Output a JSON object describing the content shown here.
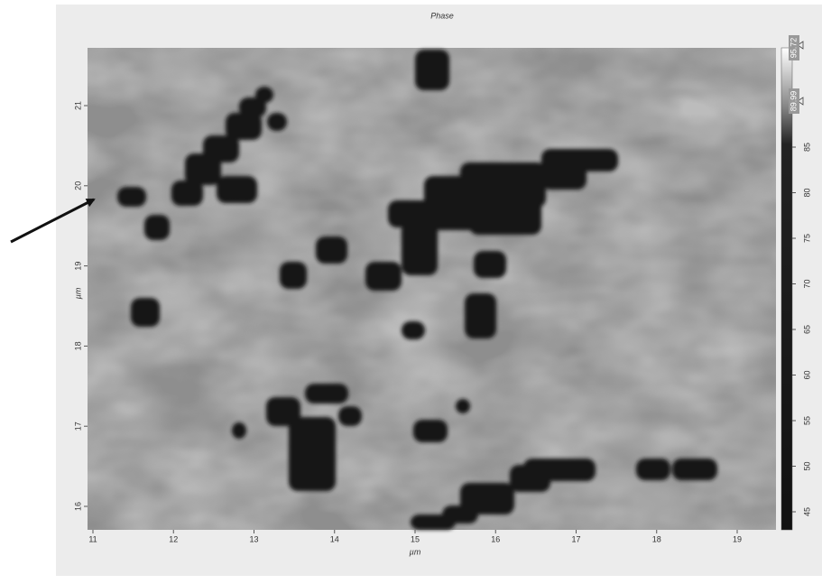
{
  "title": "Phase",
  "x_axis": {
    "label": "µm",
    "ticks": [
      11,
      12,
      13,
      14,
      15,
      16,
      17,
      18,
      19
    ]
  },
  "y_axis": {
    "label": "µm",
    "ticks": [
      16,
      17,
      18,
      19,
      20,
      21
    ]
  },
  "colorbar": {
    "ticks": [
      45,
      50,
      55,
      60,
      65,
      70,
      75,
      80,
      85
    ],
    "markers": [
      95.72,
      89.99
    ]
  }
}
